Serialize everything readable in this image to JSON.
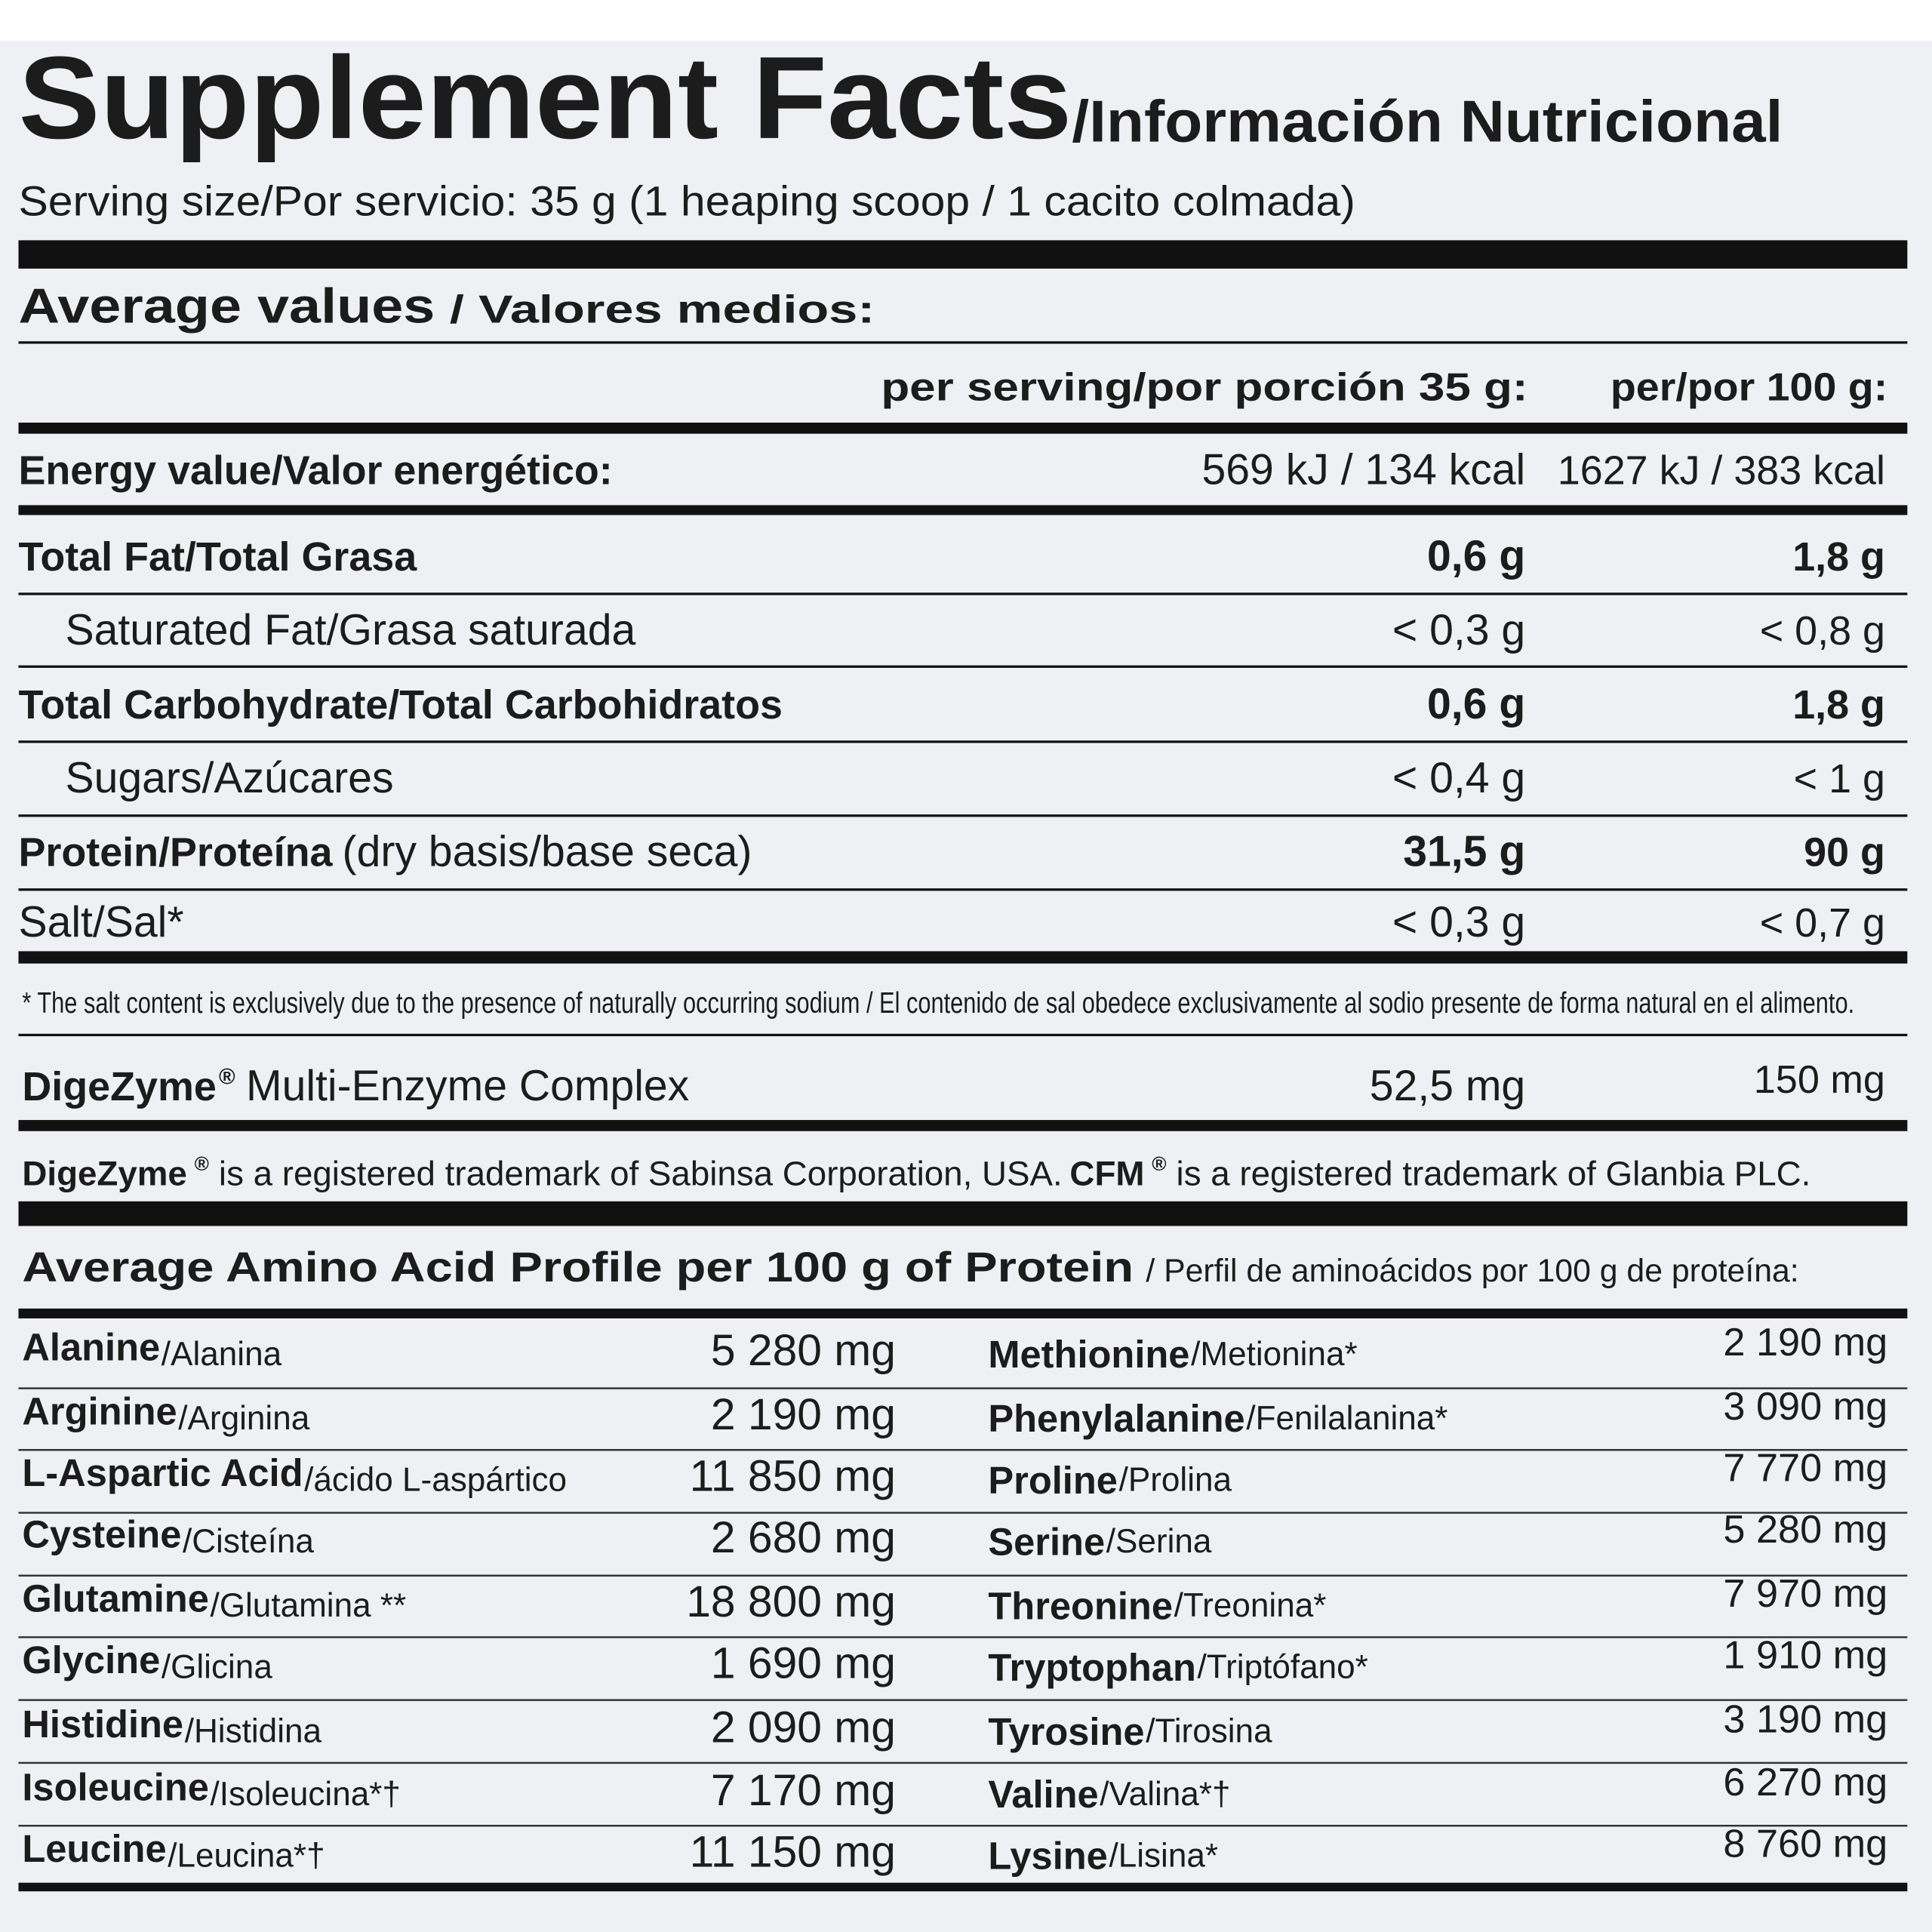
{
  "header": {
    "title": "Supplement Facts",
    "subtitle": "/Información Nutricional",
    "serving": "Serving size/Por servicio: 35 g (1 heaping scoop / 1 cacito colmada)"
  },
  "average": {
    "title": "Average values",
    "subtitle": "/ Valores medios:",
    "columns": [
      "per serving/por porción 35 g:",
      "per/por 100 g:"
    ]
  },
  "nutrients": [
    {
      "name": "Energy value/Valor energético:",
      "per_serving": "569 kJ / 134 kcal",
      "per_100g": "1627 kJ / 383 kcal"
    },
    {
      "name": "Total Fat/Total Grasa",
      "per_serving": "0,6 g",
      "per_100g": "1,8 g"
    },
    {
      "name": "Saturated Fat/Grasa saturada",
      "per_serving": "< 0,3 g",
      "per_100g": "< 0,8 g"
    },
    {
      "name": "Total Carbohydrate/Total Carbohidratos",
      "per_serving": "0,6 g",
      "per_100g": "1,8 g"
    },
    {
      "name": "Sugars/Azúcares",
      "per_serving": "< 0,4 g",
      "per_100g": "< 1 g"
    },
    {
      "name": "Protein/Proteína",
      "detail": "(dry basis/base seca)",
      "per_serving": "31,5 g",
      "per_100g": "90 g"
    },
    {
      "name": "Salt/Sal*",
      "per_serving": "< 0,3 g",
      "per_100g": "< 0,7 g"
    }
  ],
  "footnote": "* The salt content is exclusively due to the presence of naturally occurring sodium / El contenido de sal obedece exclusivamente al sodio presente de forma natural en el alimento.",
  "enzyme": {
    "name": "DigeZyme",
    "mark": "®",
    "detail": "Multi-Enzyme Complex",
    "per_serving": "52,5 mg",
    "per_100g": "150 mg"
  },
  "trademark": [
    "DigeZyme",
    "®",
    "is a registered trademark of Sabinsa Corporation, USA.",
    "CFM",
    "®",
    "is a registered trademark of Glanbia PLC."
  ],
  "amino": {
    "title": "Average Amino Acid Profile per 100 g of Protein",
    "subtitle": "/ Perfil de aminoácidos por 100 g de proteína:",
    "left": [
      {
        "name": "Alanine",
        "local": "/Alanina",
        "value": "5 280 mg"
      },
      {
        "name": "Arginine",
        "local": "/Arginina",
        "value": "2 190 mg"
      },
      {
        "name": "L-Aspartic Acid",
        "local": "/ácido L-aspártico",
        "value": "11 850 mg"
      },
      {
        "name": "Cysteine",
        "local": "/Cisteína",
        "value": "2 680 mg"
      },
      {
        "name": "Glutamine",
        "local": "/Glutamina **",
        "value": "18 800 mg"
      },
      {
        "name": "Glycine",
        "local": "/Glicina",
        "value": "1 690 mg"
      },
      {
        "name": "Histidine",
        "local": "/Histidina",
        "value": "2 090 mg"
      },
      {
        "name": "Isoleucine",
        "local": "/Isoleucina*†",
        "value": "7 170 mg"
      },
      {
        "name": "Leucine",
        "local": "/Leucina*†",
        "value": "11 150 mg"
      }
    ],
    "right": [
      {
        "name": "Methionine",
        "local": "/Metionina*",
        "value": "2 190 mg"
      },
      {
        "name": "Phenylalanine",
        "local": "/Fenilalanina*",
        "value": "3 090 mg"
      },
      {
        "name": "Proline",
        "local": "/Prolina",
        "value": "7 770 mg"
      },
      {
        "name": "Serine",
        "local": "/Serina",
        "value": "5 280 mg"
      },
      {
        "name": "Threonine",
        "local": "/Treonina*",
        "value": "7 970 mg"
      },
      {
        "name": "Tryptophan",
        "local": "/Triptófano*",
        "value": "1 910 mg"
      },
      {
        "name": "Tyrosine",
        "local": "/Tirosina",
        "value": "3 190 mg"
      },
      {
        "name": "Valine",
        "local": "/Valina*†",
        "value": "6 270 mg"
      },
      {
        "name": "Lysine",
        "local": "/Lisina*",
        "value": "8 760 mg"
      }
    ]
  }
}
